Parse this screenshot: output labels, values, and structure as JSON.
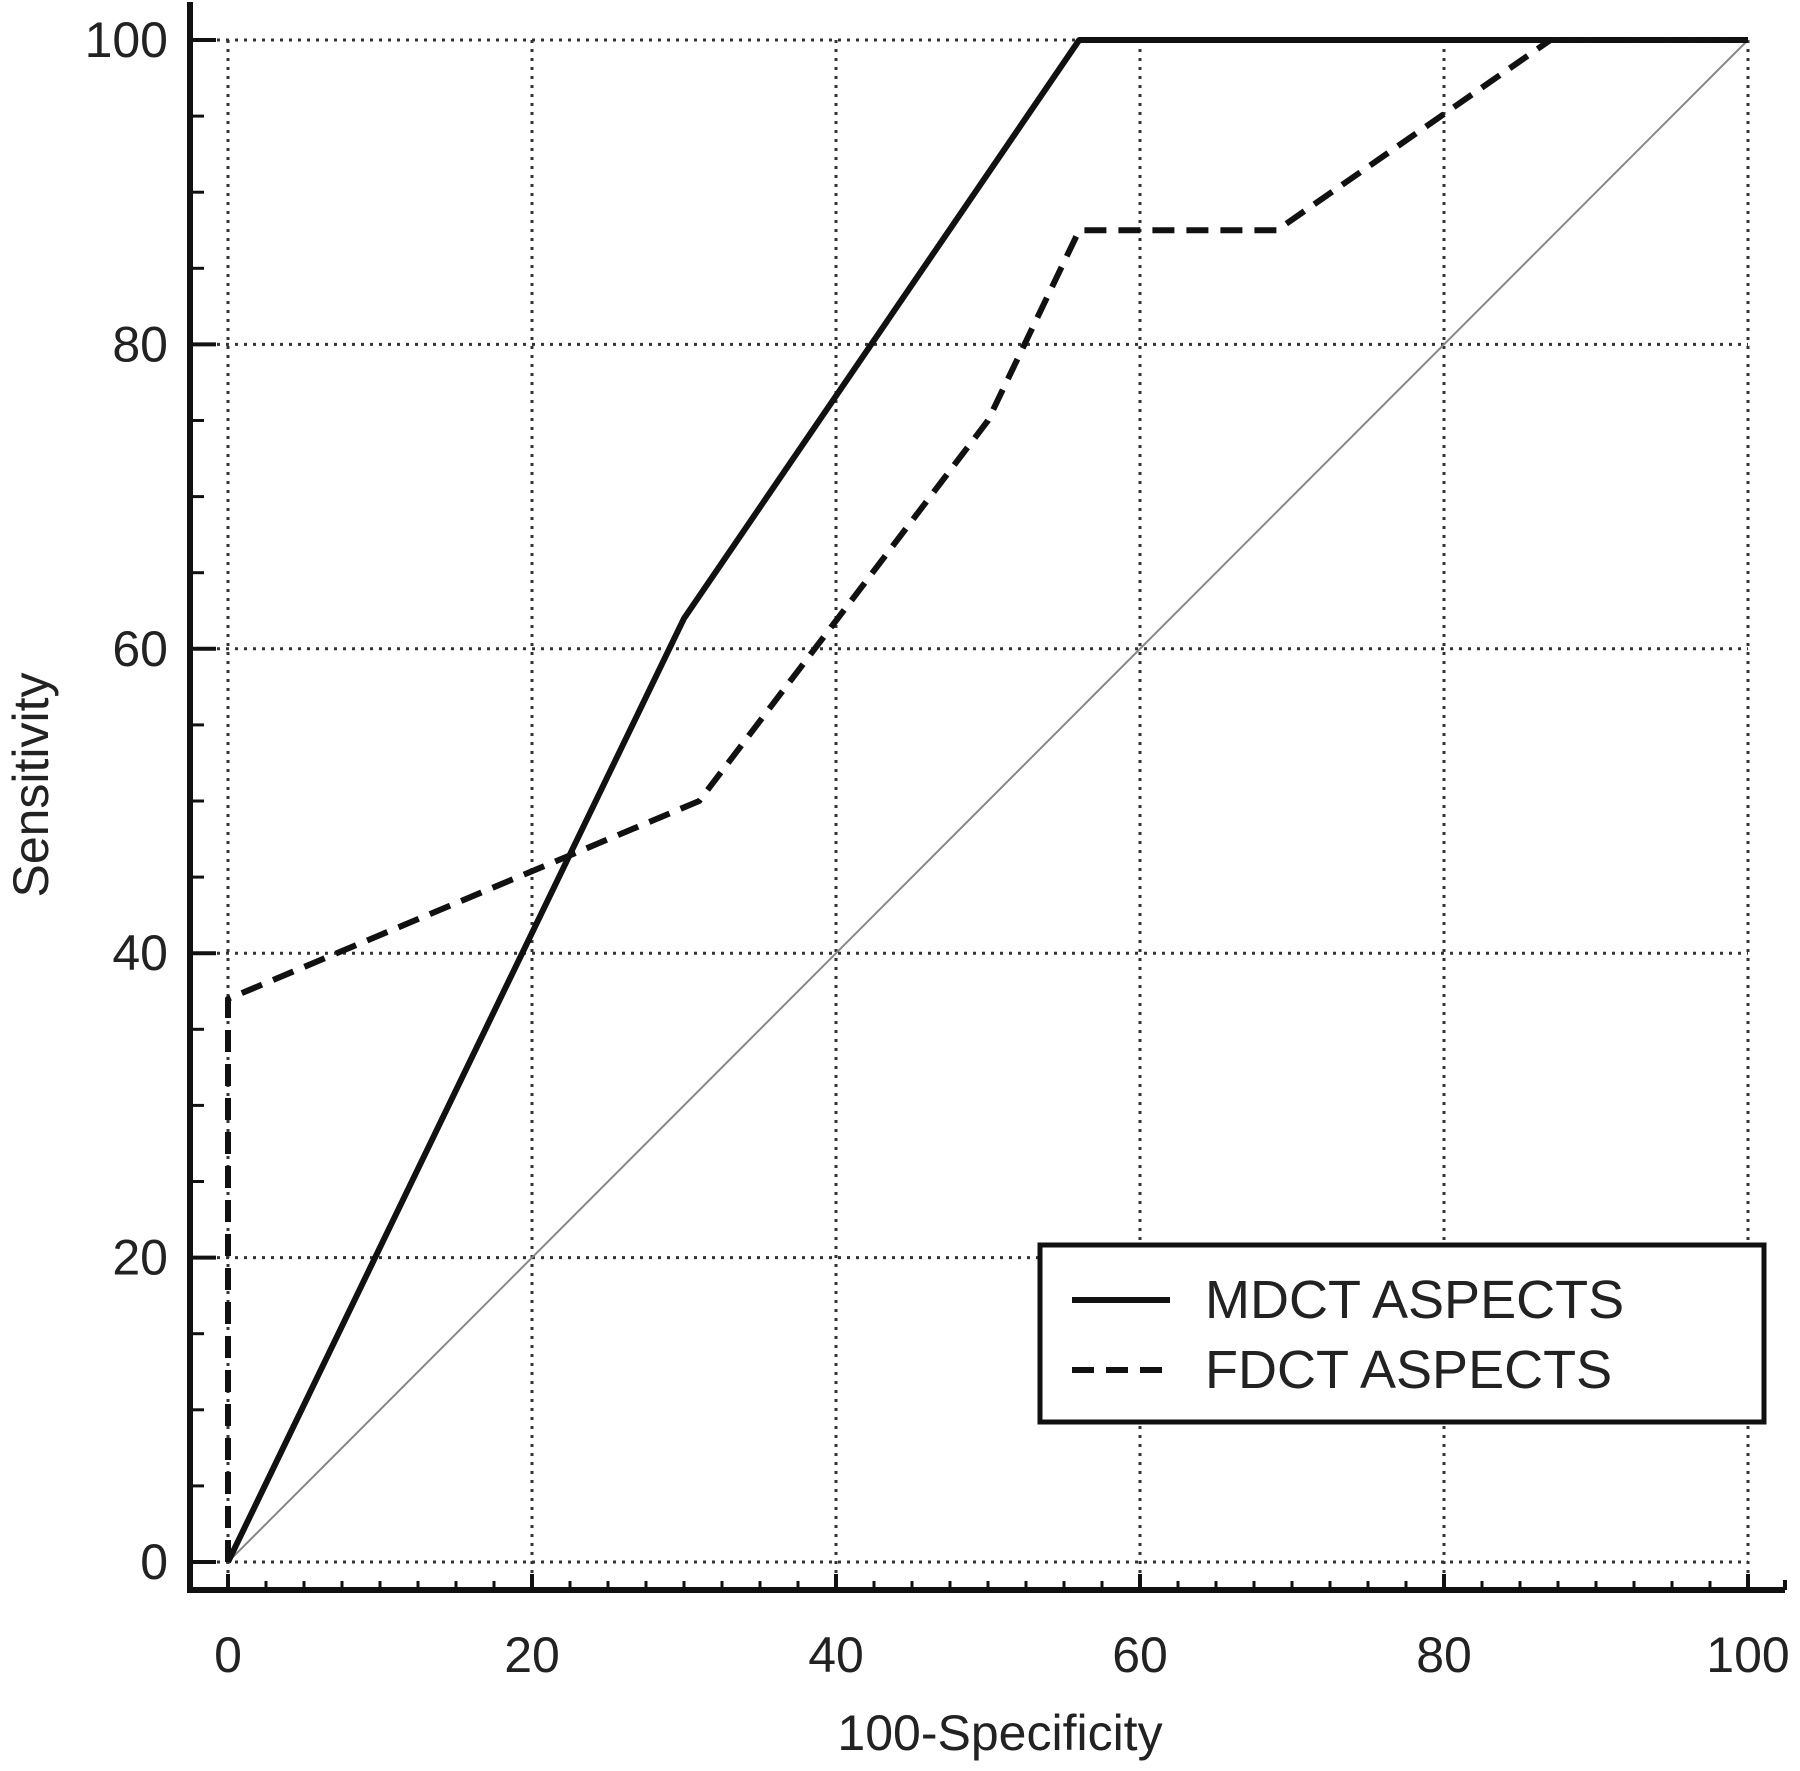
{
  "chart_data": {
    "type": "line",
    "xlabel": "100-Specificity",
    "ylabel": "Sensitivity",
    "xlim": [
      0,
      100
    ],
    "ylim": [
      0,
      100
    ],
    "x_ticks": [
      "0",
      "20",
      "40",
      "60",
      "80",
      "100"
    ],
    "y_ticks": [
      "0",
      "20",
      "40",
      "60",
      "80",
      "100"
    ],
    "grid": true,
    "legend_position": "bottom-right",
    "series": [
      {
        "name": "MDCT ASPECTS",
        "style": "solid",
        "x": [
          0,
          30,
          56,
          100
        ],
        "y": [
          0,
          62,
          100,
          100
        ]
      },
      {
        "name": "FDCT ASPECTS",
        "style": "dashed",
        "x": [
          0,
          0,
          31,
          50,
          56,
          69,
          87,
          100
        ],
        "y": [
          0,
          37,
          50,
          75,
          87.5,
          87.5,
          100,
          100
        ]
      },
      {
        "name": "",
        "style": "reference",
        "x": [
          0,
          100
        ],
        "y": [
          0,
          100
        ]
      }
    ]
  }
}
